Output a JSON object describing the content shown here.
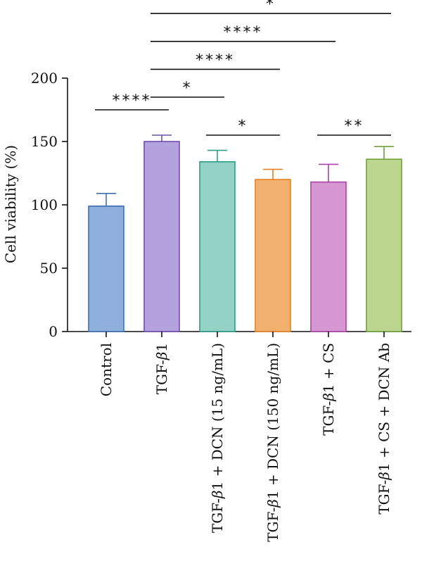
{
  "chart_data": {
    "type": "bar",
    "ylabel": "Cell viability (%)",
    "ylim": [
      0,
      200
    ],
    "yticks": [
      0,
      50,
      100,
      150,
      200
    ],
    "categories": [
      {
        "pre": "Control",
        "sym": "",
        "post": ""
      },
      {
        "pre": "TGF-",
        "sym": "β",
        "post": "1"
      },
      {
        "pre": "TGF-",
        "sym": "β",
        "post": "1 + DCN (15 ng/mL)"
      },
      {
        "pre": "TGF-",
        "sym": "β",
        "post": "1 + DCN (150 ng/mL)"
      },
      {
        "pre": "TGF-",
        "sym": "β",
        "post": "1 + CS"
      },
      {
        "pre": "TGF-",
        "sym": "β",
        "post": "1 + CS + DCN Ab"
      }
    ],
    "values": [
      99,
      150,
      134,
      120,
      118,
      136
    ],
    "errors": [
      10,
      5,
      9,
      8,
      14,
      10
    ],
    "fill_colors": [
      "#8EAEDB",
      "#B4A2DE",
      "#93D2C5",
      "#F1B06E",
      "#D596D2",
      "#BCD68F"
    ],
    "edge_colors": [
      "#3F70B4",
      "#6E4EB0",
      "#2E9C87",
      "#E58120",
      "#A943A7",
      "#70A13A"
    ],
    "significance": [
      {
        "from": 0,
        "to": 1,
        "label": "****",
        "y": 175
      },
      {
        "from": 1,
        "to": 2,
        "label": "*",
        "y": 185
      },
      {
        "from": 1,
        "to": 3,
        "label": "****",
        "y": 207
      },
      {
        "from": 1,
        "to": 4,
        "label": "****",
        "y": 229
      },
      {
        "from": 1,
        "to": 5,
        "label": "*",
        "y": 251
      },
      {
        "from": 2,
        "to": 3,
        "label": "*",
        "y": 155
      },
      {
        "from": 4,
        "to": 5,
        "label": "**",
        "y": 155
      }
    ]
  }
}
